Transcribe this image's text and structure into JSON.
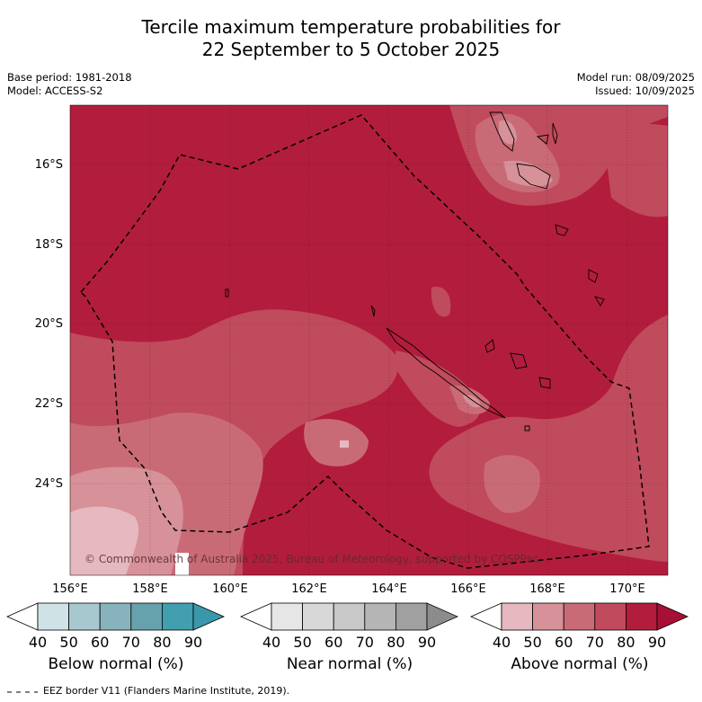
{
  "header": {
    "title_line1": "Tercile maximum temperature probabilities for",
    "title_line2": "22 September to 5 October 2025",
    "base_period": "Base period: 1981-2018",
    "model": "Model: ACCESS-S2",
    "model_run": "Model run: 08/09/2025",
    "issued": "Issued: 10/09/2025"
  },
  "map": {
    "lon_labels": [
      "156°E",
      "158°E",
      "160°E",
      "162°E",
      "164°E",
      "166°E",
      "168°E",
      "170°E"
    ],
    "lat_labels": [
      "16°S",
      "18°S",
      "20°S",
      "22°S",
      "24°S"
    ],
    "copyright": "© Commonwealth of Australia 2025, Bureau of Meteorology, supported by COSPPac",
    "colors": {
      "above_40": "#e5b9bf",
      "above_50": "#d79198",
      "above_60": "#c96b77",
      "above_70": "#c04b5c",
      "above_80": "#b21d3d",
      "above_90": "#a80f35"
    }
  },
  "colorbars": [
    {
      "title": "Below normal (%)",
      "ticks": [
        "40",
        "50",
        "60",
        "70",
        "80",
        "90"
      ],
      "colors": [
        "#cfe3e7",
        "#a8c8cf",
        "#87b3bd",
        "#66a1ae",
        "#419faf",
        "#3a98ab"
      ]
    },
    {
      "title": "Near normal (%)",
      "ticks": [
        "40",
        "50",
        "60",
        "70",
        "80",
        "90"
      ],
      "colors": [
        "#e6e6e6",
        "#d8d8d8",
        "#c8c8c8",
        "#b5b5b5",
        "#a0a0a0",
        "#8c8c8c"
      ]
    },
    {
      "title": "Above normal (%)",
      "ticks": [
        "40",
        "50",
        "60",
        "70",
        "80",
        "90"
      ],
      "colors": [
        "#e5b9bf",
        "#d79198",
        "#c96b77",
        "#c04b5c",
        "#b21d3d",
        "#a80f35"
      ]
    }
  ],
  "footer": {
    "legend_line_label": "EEZ border V11 (Flanders Marine Institute, 2019)."
  }
}
